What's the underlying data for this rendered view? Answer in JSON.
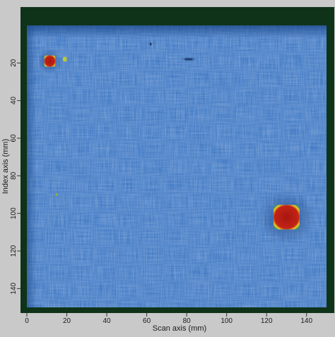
{
  "chart_data": {
    "type": "heatmap",
    "title": "",
    "xlabel": "Scan axis (mm)",
    "ylabel": "Index axis (mm)",
    "xlim": [
      0,
      150
    ],
    "ylim": [
      0,
      150
    ],
    "y_inverted": true,
    "x_ticks": [
      0,
      20,
      40,
      60,
      80,
      100,
      120,
      140
    ],
    "y_ticks": [
      20,
      40,
      60,
      80,
      100,
      120,
      140
    ],
    "grid": false,
    "legend": "none",
    "background_level_color": "#3f78c4",
    "frame_color": "#0f3318",
    "defects": [
      {
        "x": 11.5,
        "y": 19,
        "w": 5.5,
        "h": 6,
        "color": "#b51b14"
      },
      {
        "x": 19,
        "y": 18,
        "w": 2,
        "h": 2.5,
        "color": "#c8d21e"
      },
      {
        "x": 130,
        "y": 102,
        "w": 13,
        "h": 13,
        "color": "#b51b14"
      },
      {
        "x": 15,
        "y": 90,
        "w": 1,
        "h": 1.6,
        "color": "#8ab24a"
      },
      {
        "x": 62,
        "y": 10,
        "w": 0.8,
        "h": 1.5,
        "color": "#1a2b4a"
      },
      {
        "x": 81,
        "y": 18,
        "w": 4,
        "h": 1,
        "color": "#1e3a6a"
      }
    ]
  }
}
